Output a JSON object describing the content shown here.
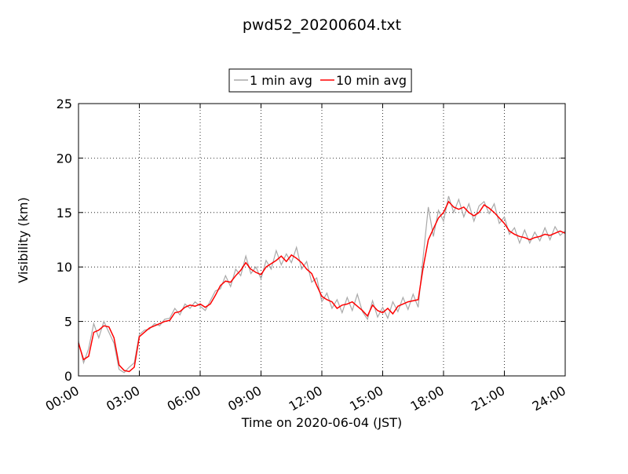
{
  "chart_data": {
    "type": "line",
    "title": "pwd52_20200604.txt",
    "xlabel": "Time on 2020-06-04 (JST)",
    "ylabel": "Visibility (km)",
    "x": [
      0,
      0.25,
      0.5,
      0.75,
      1,
      1.25,
      1.5,
      1.75,
      2,
      2.25,
      2.5,
      2.75,
      3,
      3.25,
      3.5,
      3.75,
      4,
      4.25,
      4.5,
      4.75,
      5,
      5.25,
      5.5,
      5.75,
      6,
      6.25,
      6.5,
      6.75,
      7,
      7.25,
      7.5,
      7.75,
      8,
      8.25,
      8.5,
      8.75,
      9,
      9.25,
      9.5,
      9.75,
      10,
      10.25,
      10.5,
      10.75,
      11,
      11.25,
      11.5,
      11.75,
      12,
      12.25,
      12.5,
      12.75,
      13,
      13.25,
      13.5,
      13.75,
      14,
      14.25,
      14.5,
      14.75,
      15,
      15.25,
      15.5,
      15.75,
      16,
      16.25,
      16.5,
      16.75,
      17,
      17.25,
      17.5,
      17.75,
      18,
      18.25,
      18.5,
      18.75,
      19,
      19.25,
      19.5,
      19.75,
      20,
      20.25,
      20.5,
      20.75,
      21,
      21.25,
      21.5,
      21.75,
      22,
      22.25,
      22.5,
      22.75,
      23,
      23.25,
      23.5,
      23.75,
      24
    ],
    "series": [
      {
        "name": "1 min avg",
        "color": "#a9a9a9",
        "values": [
          3.2,
          1.2,
          2.5,
          4.8,
          3.5,
          5.0,
          4.0,
          3.0,
          0.6,
          0.3,
          0.8,
          1.2,
          3.8,
          4.2,
          4.3,
          4.8,
          4.6,
          5.2,
          5.3,
          6.2,
          5.6,
          6.6,
          6.2,
          6.8,
          6.4,
          6.0,
          6.9,
          7.8,
          8.0,
          9.2,
          8.2,
          9.8,
          9.2,
          11.0,
          9.4,
          10.0,
          8.9,
          10.6,
          9.8,
          11.5,
          10.2,
          11.2,
          10.4,
          11.8,
          9.8,
          10.5,
          8.6,
          9.0,
          6.8,
          7.6,
          6.2,
          7.0,
          5.8,
          7.2,
          6.0,
          7.5,
          5.9,
          5.2,
          6.9,
          5.4,
          6.3,
          5.3,
          6.8,
          5.9,
          7.2,
          6.1,
          7.5,
          6.3,
          11.0,
          15.5,
          12.8,
          15.2,
          14.2,
          16.5,
          15.0,
          16.2,
          14.6,
          15.8,
          14.2,
          15.6,
          16.0,
          14.9,
          15.8,
          14.0,
          14.6,
          13.0,
          13.6,
          12.2,
          13.4,
          12.2,
          13.2,
          12.4,
          13.6,
          12.5,
          13.7,
          12.9,
          13.3
        ]
      },
      {
        "name": "10 min avg",
        "color": "#ff0000",
        "values": [
          3.0,
          1.5,
          1.8,
          4.0,
          4.2,
          4.6,
          4.5,
          3.5,
          1.0,
          0.5,
          0.4,
          0.8,
          3.6,
          4.0,
          4.4,
          4.6,
          4.8,
          5.0,
          5.1,
          5.8,
          5.9,
          6.3,
          6.5,
          6.4,
          6.6,
          6.3,
          6.6,
          7.4,
          8.3,
          8.7,
          8.6,
          9.2,
          9.7,
          10.4,
          9.8,
          9.5,
          9.3,
          10.0,
          10.3,
          10.6,
          11.0,
          10.5,
          11.1,
          10.8,
          10.4,
          9.8,
          9.4,
          8.3,
          7.3,
          7.0,
          6.8,
          6.2,
          6.5,
          6.6,
          6.8,
          6.4,
          6.0,
          5.5,
          6.5,
          6.0,
          5.8,
          6.2,
          5.7,
          6.4,
          6.6,
          6.8,
          6.9,
          7.0,
          10.0,
          12.5,
          13.5,
          14.5,
          15.0,
          16.0,
          15.5,
          15.3,
          15.5,
          15.0,
          14.7,
          15.0,
          15.7,
          15.4,
          15.0,
          14.5,
          14.0,
          13.3,
          13.0,
          12.8,
          12.7,
          12.5,
          12.7,
          12.8,
          13.0,
          12.9,
          13.1,
          13.3,
          13.1
        ]
      }
    ],
    "xlim": [
      0,
      24
    ],
    "xticks": [
      {
        "value": 0,
        "label": "00:00"
      },
      {
        "value": 3,
        "label": "03:00"
      },
      {
        "value": 6,
        "label": "06:00"
      },
      {
        "value": 9,
        "label": "09:00"
      },
      {
        "value": 12,
        "label": "12:00"
      },
      {
        "value": 15,
        "label": "15:00"
      },
      {
        "value": 18,
        "label": "18:00"
      },
      {
        "value": 21,
        "label": "21:00"
      },
      {
        "value": 24,
        "label": "24:00"
      }
    ],
    "ylim": [
      0,
      25
    ],
    "yticks": [
      0,
      5,
      10,
      15,
      20,
      25
    ],
    "grid": true,
    "legend": "top"
  }
}
